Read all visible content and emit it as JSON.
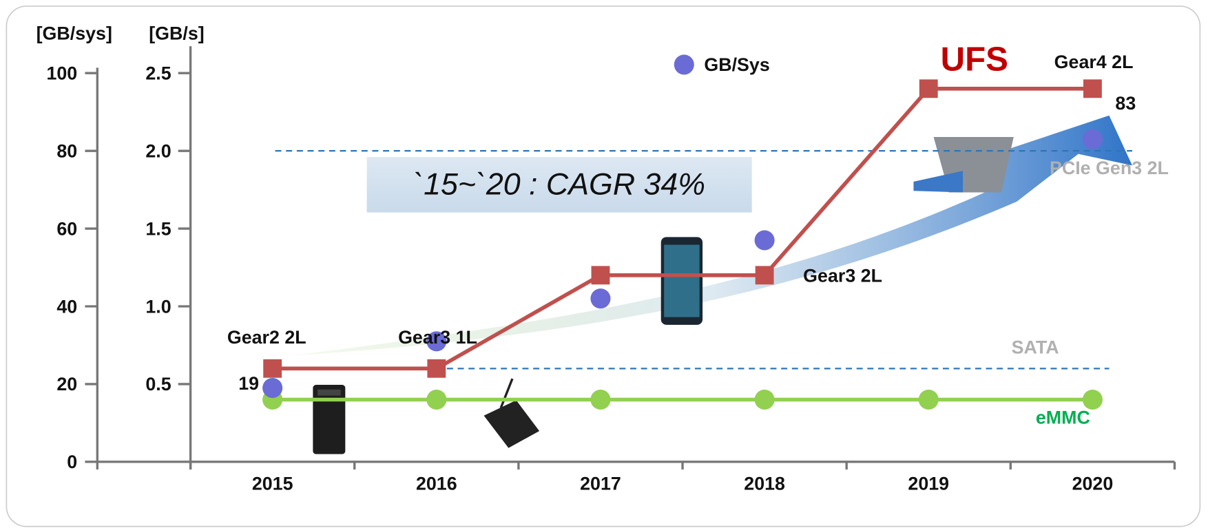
{
  "chart_data": {
    "type": "line",
    "categories": [
      "2015",
      "2016",
      "2017",
      "2018",
      "2019",
      "2020"
    ],
    "y_label": "[GB/sys]",
    "y2_label": "[GB/s]",
    "ylim": [
      0,
      100
    ],
    "yticks": [
      0,
      20,
      40,
      60,
      80,
      100
    ],
    "y2lim": [
      0,
      2.5
    ],
    "y2ticks": [
      0.5,
      {
        "value": 1,
        "label": "1.0"
      },
      1.5,
      {
        "value": 2,
        "label": "2.0"
      },
      2.5
    ],
    "series": [
      {
        "name": "UFS",
        "color": "#c0504d",
        "axis": "y2",
        "marker": "square",
        "line": true,
        "values": [
          0.6,
          0.6,
          1.2,
          1.2,
          2.4,
          2.4
        ]
      },
      {
        "name": "eMMC",
        "color": "#92d050",
        "axis": "y2",
        "marker": "circle",
        "line": true,
        "values": [
          0.4,
          0.4,
          0.4,
          0.4,
          0.4,
          0.4
        ]
      },
      {
        "name": "GB/Sys",
        "color": "#6b6bd6",
        "marker": "circle",
        "line": false,
        "values": [
          19,
          31,
          42,
          57,
          null,
          83
        ]
      }
    ],
    "reference_lines": [
      {
        "label": "PCIe Gen3 2L",
        "value": 2,
        "color": "#2e75b6"
      },
      {
        "label": "SATA",
        "value": 0.6,
        "color": "#2e75b6"
      }
    ],
    "annotations": [
      "Gear2 2L",
      "Gear3 1L",
      "Gear3 2L",
      "Gear4 2L",
      "`15~`20 : CAGR 34%"
    ]
  }
}
